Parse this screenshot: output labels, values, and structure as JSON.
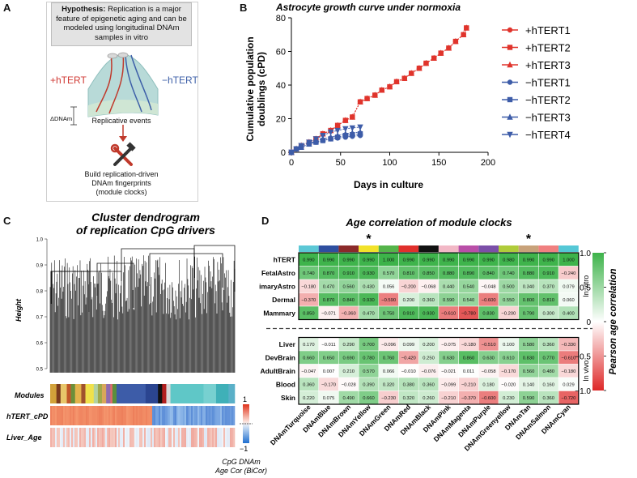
{
  "panels": {
    "a": {
      "letter": "A",
      "hypothesis_label": "Hypothesis:",
      "hypothesis_text": "Replication is a major feature of epigenetic aging and can be modeled using longitudinal DNAm samples in vitro",
      "plus_label": "+hTERT",
      "minus_label": "−hTERT",
      "delta_label": "ΔDNAm",
      "replicative_label": "Replicative events",
      "build_line1": "Build replication-driven",
      "build_line2": "DNAm fingerprints",
      "build_line3": "(module clocks)",
      "icon": "tools-icon",
      "colors": {
        "plus": "#d03a34",
        "minus": "#3d5fa8",
        "arrow": "#c0392b"
      }
    },
    "b": {
      "letter": "B"
    },
    "c": {
      "letter": "C",
      "title_line1": "Cluster dendrogram",
      "title_line2": "of replication CpG drivers",
      "height_label": "Height",
      "yticks": [
        "0.5",
        "0.6",
        "0.7",
        "0.8",
        "0.9",
        "1.0"
      ],
      "row_labels": [
        "Modules",
        "hTERT_cPD",
        "Liver_Age"
      ],
      "scale_max": "1",
      "scale_min": "−1",
      "scale_caption_line1": "CpG DNAm",
      "scale_caption_line2": "Age Cor (BiCor)",
      "module_strip": [
        {
          "c": "#d2a23a",
          "w": 3
        },
        {
          "c": "#7a3b1e",
          "w": 2
        },
        {
          "c": "#e8c66a",
          "w": 3
        },
        {
          "c": "#c1572a",
          "w": 2
        },
        {
          "c": "#6b8f3a",
          "w": 2
        },
        {
          "c": "#e3b34c",
          "w": 3
        },
        {
          "c": "#a0522d",
          "w": 2
        },
        {
          "c": "#f0e14a",
          "w": 4
        },
        {
          "c": "#b2d1a0",
          "w": 2
        },
        {
          "c": "#9fa84a",
          "w": 2
        },
        {
          "c": "#d9a65a",
          "w": 2
        },
        {
          "c": "#8e6bb0",
          "w": 2
        },
        {
          "c": "#e06b6b",
          "w": 1
        },
        {
          "c": "#5a8f3c",
          "w": 2
        },
        {
          "c": "#3d5ca8",
          "w": 14
        },
        {
          "c": "#2b4590",
          "w": 6
        },
        {
          "c": "#111111",
          "w": 2
        },
        {
          "c": "#b21f1f",
          "w": 2
        },
        {
          "c": "#d9d9d9",
          "w": 2
        },
        {
          "c": "#5fc7c7",
          "w": 16
        },
        {
          "c": "#77d0d0",
          "w": 6
        },
        {
          "c": "#3fb0b8",
          "w": 6
        },
        {
          "c": "#5ab0c8",
          "w": 3
        }
      ]
    },
    "d": {
      "letter": "D"
    }
  },
  "chart_data": [
    {
      "type": "line",
      "title": "Astrocyte growth curve under normoxia",
      "xlabel": "Days in culture",
      "ylabel_line1": "Cumulative population",
      "ylabel_line2": "doublings (cPD)",
      "xlim": [
        0,
        200
      ],
      "ylim": [
        0,
        80
      ],
      "xticks": [
        0,
        50,
        100,
        150,
        200
      ],
      "yticks": [
        0,
        20,
        40,
        60,
        80
      ],
      "grid": false,
      "legend_position": "right",
      "series": [
        {
          "name": "+hTERT1",
          "color": "#e0342c",
          "marker": "circle",
          "x": [
            0,
            5,
            10,
            18,
            25,
            32,
            40,
            47,
            55,
            62,
            70,
            77,
            85,
            92,
            100,
            107,
            115,
            122,
            130,
            137,
            145,
            152,
            160,
            167,
            175,
            178
          ],
          "y": [
            0,
            2,
            4,
            6,
            8,
            11,
            13,
            16,
            19,
            21,
            30,
            32,
            34,
            37,
            39,
            42,
            44,
            47,
            50,
            53,
            56,
            59,
            62,
            66,
            70,
            74
          ]
        },
        {
          "name": "+hTERT2",
          "color": "#e0342c",
          "marker": "square",
          "x": [
            0,
            5,
            10,
            18,
            25,
            32,
            40,
            47,
            55,
            62,
            70,
            77,
            85,
            92,
            100,
            107,
            115,
            122,
            130,
            137,
            145,
            152,
            160,
            167,
            175,
            178
          ],
          "y": [
            0,
            2,
            4,
            6,
            8,
            11,
            13,
            16,
            19,
            21,
            30,
            32,
            34,
            37,
            39,
            42,
            44,
            47,
            50,
            53,
            56,
            59,
            62,
            66,
            70,
            74
          ]
        },
        {
          "name": "+hTERT3",
          "color": "#e0342c",
          "marker": "triangle-up",
          "x": [
            0,
            5,
            10,
            18,
            25,
            32,
            40,
            47,
            55,
            62,
            70,
            77,
            85,
            92,
            100,
            107,
            115,
            122,
            130,
            137,
            145,
            152,
            160,
            167,
            175,
            178
          ],
          "y": [
            0,
            2,
            4,
            6,
            8,
            11,
            13,
            16,
            19,
            21,
            30,
            32,
            34,
            37,
            39,
            42,
            44,
            47,
            50,
            53,
            56,
            59,
            62,
            66,
            70,
            74
          ]
        },
        {
          "name": "−hTERT1",
          "color": "#3d5ca8",
          "marker": "circle",
          "x": [
            0,
            5,
            10,
            18,
            25,
            32,
            40,
            47,
            55,
            62,
            70
          ],
          "y": [
            0,
            2,
            3,
            5,
            6,
            7,
            8,
            8.5,
            9,
            9.5,
            10
          ]
        },
        {
          "name": "−hTERT2",
          "color": "#3d5ca8",
          "marker": "square",
          "x": [
            0,
            5,
            10,
            18,
            25,
            32,
            40,
            47,
            55,
            62,
            70
          ],
          "y": [
            0,
            2,
            3,
            5,
            6,
            7,
            8,
            9,
            10,
            10.5,
            11
          ]
        },
        {
          "name": "−hTERT3",
          "color": "#3d5ca8",
          "marker": "triangle-up",
          "x": [
            0,
            5,
            10,
            18,
            25,
            32,
            40,
            47,
            55,
            62,
            70
          ],
          "y": [
            0,
            2,
            3,
            5,
            7,
            8,
            9,
            10,
            11,
            11.5,
            12
          ]
        },
        {
          "name": "−hTERT4",
          "color": "#3d5ca8",
          "marker": "triangle-down",
          "x": [
            0,
            5,
            10,
            18,
            25,
            32,
            40,
            47,
            55,
            62,
            70
          ],
          "y": [
            0,
            2,
            4,
            6,
            8,
            10,
            12,
            13,
            14,
            14.5,
            15
          ]
        }
      ]
    },
    {
      "type": "heatmap",
      "title": "Age correlation of module clocks",
      "colorbar_label": "Pearson age correlation",
      "colorbar_ticks": [
        "1.0",
        "0.5",
        "0",
        "−0.5",
        "−1.0"
      ],
      "vmin": -1,
      "vmax": 1,
      "group_labels": [
        "In vitro",
        "In vivo"
      ],
      "column_colors": [
        "#5cc8d6",
        "#2e4fa0",
        "#8b2a2a",
        "#f2e22a",
        "#55b44a",
        "#e0302c",
        "#111111",
        "#f2b8c6",
        "#b94fa8",
        "#7b4fa8",
        "#b0cc3a",
        "#c8a27a",
        "#f08080",
        "#55c8d6"
      ],
      "starred_columns": [
        3,
        11
      ],
      "star_symbol": "*",
      "columns": [
        "DNAmTurquoise",
        "DNAmBlue",
        "DNAmBrown",
        "DNAmYellow",
        "DNAmGreen",
        "DNAmRed",
        "DNAmBlack",
        "DNAmPink",
        "DNAmMagenta",
        "DNAmPurple",
        "DNAmGreenyellow",
        "DNAmTan",
        "DNAmSalmon",
        "DNAmCyan"
      ],
      "rows": [
        "hTERT",
        "FetalAstro",
        "PrimaryAstro",
        "Dermal",
        "Mammary",
        "Liver",
        "DevBrain",
        "AdultBrain",
        "Blood",
        "Skin"
      ],
      "values": [
        [
          0.99,
          0.99,
          0.99,
          0.99,
          1.0,
          0.99,
          0.99,
          0.99,
          0.99,
          0.99,
          0.98,
          0.99,
          0.99,
          1.0
        ],
        [
          0.74,
          0.87,
          0.91,
          0.93,
          0.57,
          0.81,
          0.85,
          0.88,
          0.89,
          0.84,
          0.74,
          0.88,
          0.91,
          -0.24
        ],
        [
          -0.18,
          0.47,
          0.56,
          0.43,
          0.056,
          -0.2,
          -0.068,
          0.44,
          0.54,
          -0.048,
          0.5,
          0.34,
          0.37,
          0.079
        ],
        [
          -0.37,
          0.87,
          0.84,
          0.93,
          -0.59,
          0.2,
          0.36,
          0.59,
          0.54,
          -0.6,
          0.55,
          0.8,
          0.81,
          0.06
        ],
        [
          0.85,
          -0.071,
          -0.36,
          0.47,
          0.75,
          0.91,
          0.93,
          -0.61,
          -0.78,
          0.83,
          -0.2,
          0.79,
          0.3,
          0.4
        ],
        [
          0.17,
          -0.011,
          0.29,
          0.7,
          -0.096,
          0.099,
          0.2,
          -0.075,
          -0.18,
          -0.51,
          0.1,
          0.58,
          0.36,
          -0.33
        ],
        [
          0.66,
          0.65,
          0.69,
          0.78,
          0.76,
          -0.42,
          0.25,
          0.63,
          0.86,
          0.63,
          0.61,
          0.83,
          0.77,
          -0.61
        ],
        [
          -0.047,
          0.007,
          0.21,
          0.57,
          0.066,
          -0.01,
          -0.076,
          -0.021,
          0.011,
          -0.058,
          -0.17,
          0.56,
          0.48,
          -0.18
        ],
        [
          0.36,
          -0.17,
          -0.028,
          0.39,
          0.32,
          0.38,
          0.36,
          -0.099,
          -0.21,
          0.18,
          -0.02,
          0.14,
          0.16,
          0.029
        ],
        [
          0.22,
          0.075,
          0.49,
          0.66,
          -0.23,
          0.32,
          0.26,
          -0.21,
          -0.37,
          -0.6,
          0.23,
          0.59,
          0.36,
          -0.72
        ]
      ],
      "value_labels": [
        [
          "0.990",
          "0.990",
          "0.990",
          "0.990",
          "1.000",
          "0.990",
          "0.990",
          "0.990",
          "0.990",
          "0.990",
          "0.980",
          "0.990",
          "0.990",
          "1.000"
        ],
        [
          "0.740",
          "0.870",
          "0.910",
          "0.930",
          "0.570",
          "0.810",
          "0.850",
          "0.880",
          "0.890",
          "0.840",
          "0.740",
          "0.880",
          "0.910",
          "−0.240"
        ],
        [
          "−0.180",
          "0.470",
          "0.560",
          "0.430",
          "0.056",
          "−0.200",
          "−0.068",
          "0.440",
          "0.540",
          "−0.048",
          "0.500",
          "0.340",
          "0.370",
          "0.079"
        ],
        [
          "−0.370",
          "0.870",
          "0.840",
          "0.930",
          "−0.590",
          "0.200",
          "0.360",
          "0.590",
          "0.540",
          "−0.600",
          "0.550",
          "0.800",
          "0.810",
          "0.060"
        ],
        [
          "0.850",
          "−0.071",
          "−0.360",
          "0.470",
          "0.750",
          "0.910",
          "0.930",
          "−0.610",
          "−0.780",
          "0.830",
          "−0.200",
          "0.790",
          "0.300",
          "0.400"
        ],
        [
          "0.170",
          "−0.011",
          "0.290",
          "0.700",
          "−0.096",
          "0.099",
          "0.200",
          "−0.075",
          "−0.180",
          "−0.510",
          "0.100",
          "0.580",
          "0.360",
          "−0.330"
        ],
        [
          "0.660",
          "0.650",
          "0.690",
          "0.780",
          "0.760",
          "−0.420",
          "0.250",
          "0.630",
          "0.860",
          "0.630",
          "0.610",
          "0.830",
          "0.770",
          "−0.610"
        ],
        [
          "−0.047",
          "0.007",
          "0.210",
          "0.570",
          "0.066",
          "−0.010",
          "−0.076",
          "−0.021",
          "0.011",
          "−0.058",
          "−0.170",
          "0.560",
          "0.480",
          "−0.180"
        ],
        [
          "0.360",
          "−0.170",
          "−0.028",
          "0.390",
          "0.320",
          "0.380",
          "0.360",
          "−0.099",
          "−0.210",
          "0.180",
          "−0.020",
          "0.140",
          "0.160",
          "0.029"
        ],
        [
          "0.220",
          "0.075",
          "0.490",
          "0.660",
          "−0.230",
          "0.320",
          "0.260",
          "−0.210",
          "−0.370",
          "−0.600",
          "0.230",
          "0.590",
          "0.360",
          "−0.720"
        ]
      ]
    }
  ]
}
